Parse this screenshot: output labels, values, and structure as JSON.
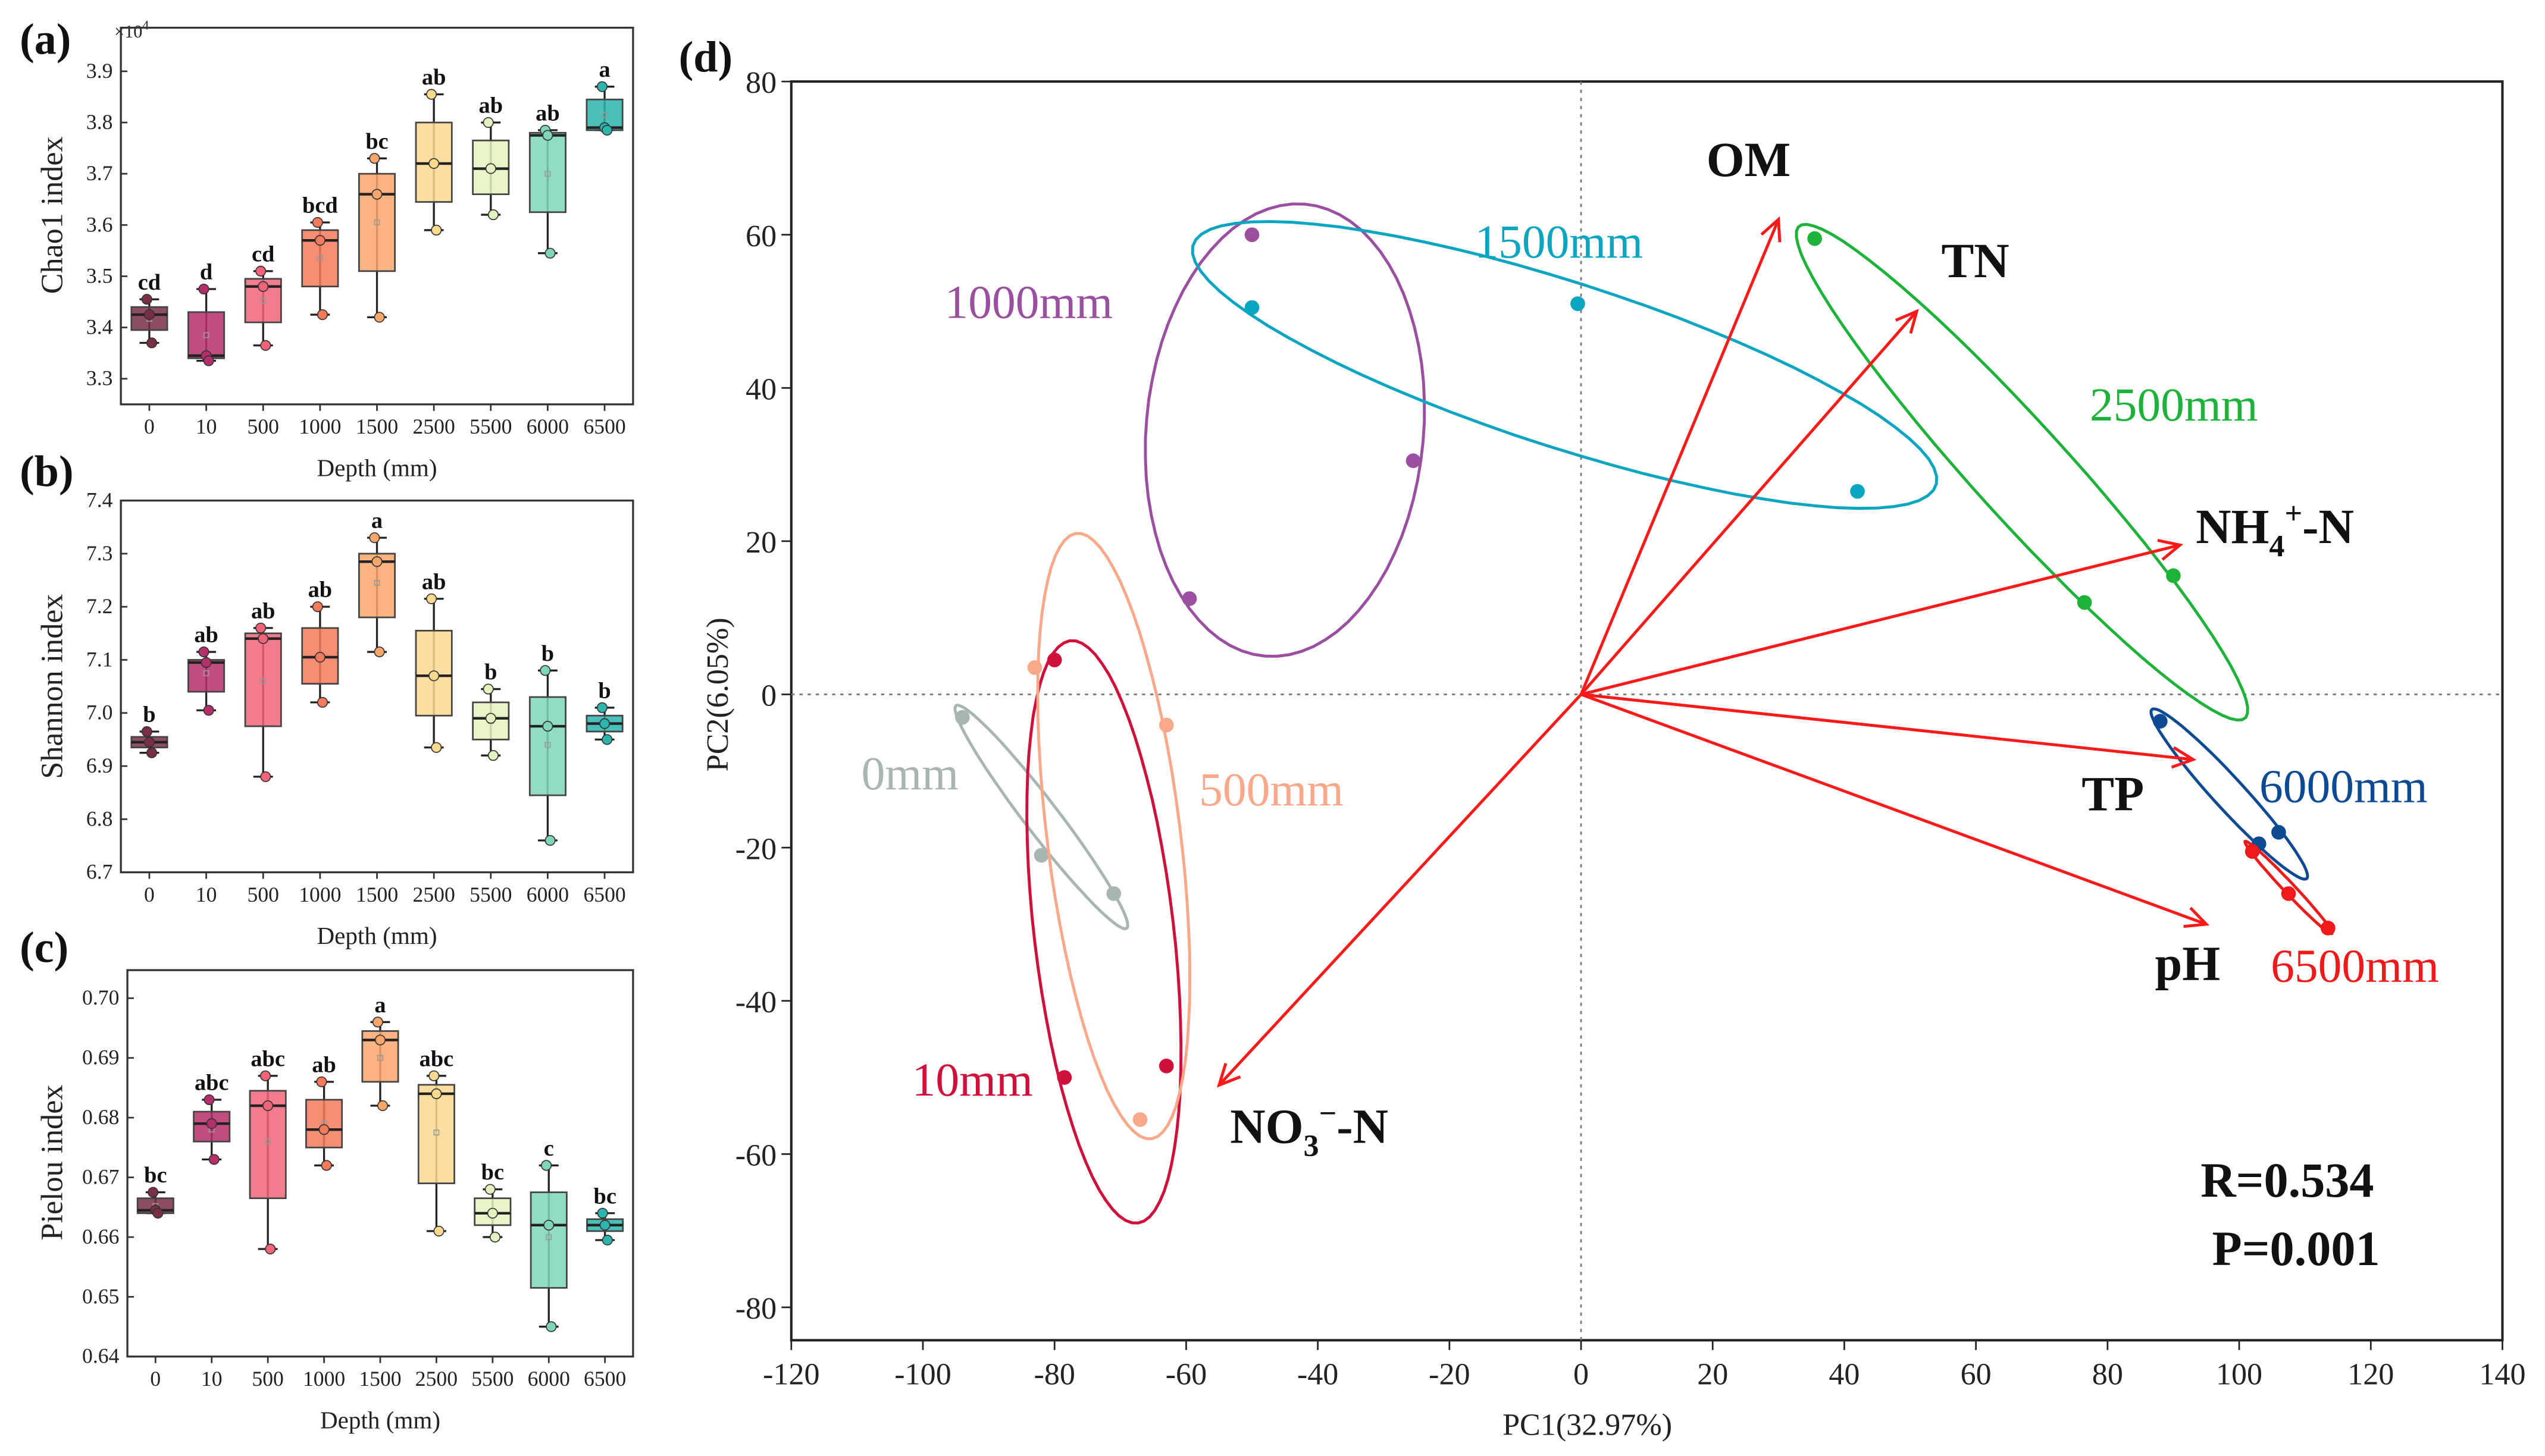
{
  "panel_labels": {
    "a": "(a)",
    "b": "(b)",
    "c": "(c)",
    "d": "(d)"
  },
  "chart_data": [
    {
      "type": "box",
      "ylabel": "Chao1 index",
      "xlabel": "Depth (mm)",
      "scale_note": "×10",
      "scale_exp": "4",
      "categories": [
        "0",
        "10",
        "500",
        "1000",
        "1500",
        "2500",
        "5500",
        "6000",
        "6500"
      ],
      "colors": [
        "#7a2f45",
        "#b5306a",
        "#f06478",
        "#f47a5a",
        "#f9a66b",
        "#fbd98f",
        "#e3f3c0",
        "#7fd6b8",
        "#2bb5ad"
      ],
      "ylim": [
        3.25,
        3.985
      ],
      "yticks": [
        "3.3",
        "3.4",
        "3.5",
        "3.6",
        "3.7",
        "3.8",
        "3.9"
      ],
      "boxes": [
        {
          "min": 3.37,
          "q1": 3.395,
          "median": 3.425,
          "q3": 3.44,
          "max": 3.455,
          "mean": 3.417,
          "letter": "cd"
        },
        {
          "min": 3.335,
          "q1": 3.34,
          "median": 3.345,
          "q3": 3.43,
          "max": 3.475,
          "mean": 3.385,
          "letter": "d"
        },
        {
          "min": 3.365,
          "q1": 3.41,
          "median": 3.48,
          "q3": 3.495,
          "max": 3.51,
          "mean": 3.452,
          "letter": "cd"
        },
        {
          "min": 3.425,
          "q1": 3.48,
          "median": 3.57,
          "q3": 3.59,
          "max": 3.605,
          "mean": 3.535,
          "letter": "bcd"
        },
        {
          "min": 3.42,
          "q1": 3.51,
          "median": 3.66,
          "q3": 3.7,
          "max": 3.73,
          "mean": 3.605,
          "letter": "bc"
        },
        {
          "min": 3.59,
          "q1": 3.645,
          "median": 3.72,
          "q3": 3.8,
          "max": 3.855,
          "mean": 3.72,
          "letter": "ab"
        },
        {
          "min": 3.62,
          "q1": 3.66,
          "median": 3.71,
          "q3": 3.765,
          "max": 3.8,
          "mean": 3.71,
          "letter": "ab"
        },
        {
          "min": 3.545,
          "q1": 3.625,
          "median": 3.775,
          "q3": 3.78,
          "max": 3.785,
          "mean": 3.7,
          "letter": "ab"
        },
        {
          "min": 3.785,
          "q1": 3.785,
          "median": 3.79,
          "q3": 3.845,
          "max": 3.87,
          "mean": 3.815,
          "letter": "a"
        }
      ]
    },
    {
      "type": "box",
      "ylabel": "Shannon index",
      "xlabel": "Depth (mm)",
      "categories": [
        "0",
        "10",
        "500",
        "1000",
        "1500",
        "2500",
        "5500",
        "6000",
        "6500"
      ],
      "colors": [
        "#7a2f45",
        "#b5306a",
        "#f06478",
        "#f47a5a",
        "#f9a66b",
        "#fbd98f",
        "#e3f3c0",
        "#7fd6b8",
        "#2bb5ad"
      ],
      "ylim": [
        6.7,
        7.4
      ],
      "yticks": [
        "6.7",
        "6.8",
        "6.9",
        "7.0",
        "7.1",
        "7.2",
        "7.3",
        "7.4"
      ],
      "boxes": [
        {
          "min": 6.925,
          "q1": 6.935,
          "median": 6.945,
          "q3": 6.955,
          "max": 6.965,
          "mean": 6.945,
          "letter": "b"
        },
        {
          "min": 7.005,
          "q1": 7.04,
          "median": 7.095,
          "q3": 7.1,
          "max": 7.115,
          "mean": 7.075,
          "letter": "ab"
        },
        {
          "min": 6.88,
          "q1": 6.975,
          "median": 7.14,
          "q3": 7.15,
          "max": 7.16,
          "mean": 7.06,
          "letter": "ab"
        },
        {
          "min": 7.02,
          "q1": 7.055,
          "median": 7.105,
          "q3": 7.16,
          "max": 7.2,
          "mean": 7.11,
          "letter": "ab"
        },
        {
          "min": 7.115,
          "q1": 7.18,
          "median": 7.285,
          "q3": 7.3,
          "max": 7.33,
          "mean": 7.245,
          "letter": "a"
        },
        {
          "min": 6.935,
          "q1": 6.995,
          "median": 7.07,
          "q3": 7.155,
          "max": 7.215,
          "mean": 7.07,
          "letter": "ab"
        },
        {
          "min": 6.92,
          "q1": 6.95,
          "median": 6.99,
          "q3": 7.02,
          "max": 7.045,
          "mean": 6.985,
          "letter": "b"
        },
        {
          "min": 6.76,
          "q1": 6.845,
          "median": 6.975,
          "q3": 7.03,
          "max": 7.08,
          "mean": 6.94,
          "letter": "b"
        },
        {
          "min": 6.95,
          "q1": 6.965,
          "median": 6.98,
          "q3": 6.995,
          "max": 7.01,
          "mean": 6.98,
          "letter": "b"
        }
      ]
    },
    {
      "type": "box",
      "ylabel": "Pielou index",
      "xlabel": "Depth (mm)",
      "categories": [
        "0",
        "10",
        "500",
        "1000",
        "1500",
        "2500",
        "5500",
        "6000",
        "6500"
      ],
      "colors": [
        "#7a2f45",
        "#b5306a",
        "#f06478",
        "#f47a5a",
        "#f9a66b",
        "#fbd98f",
        "#e3f3c0",
        "#7fd6b8",
        "#2bb5ad"
      ],
      "ylim": [
        0.64,
        0.7047
      ],
      "yticks": [
        "0.64",
        "0.65",
        "0.66",
        "0.67",
        "0.68",
        "0.69",
        "0.70"
      ],
      "boxes": [
        {
          "min": 0.664,
          "q1": 0.664,
          "median": 0.6645,
          "q3": 0.6665,
          "max": 0.6675,
          "mean": 0.6652,
          "letter": "bc"
        },
        {
          "min": 0.673,
          "q1": 0.676,
          "median": 0.679,
          "q3": 0.681,
          "max": 0.683,
          "mean": 0.678,
          "letter": "abc"
        },
        {
          "min": 0.658,
          "q1": 0.6665,
          "median": 0.682,
          "q3": 0.6845,
          "max": 0.687,
          "mean": 0.676,
          "letter": "abc"
        },
        {
          "min": 0.672,
          "q1": 0.675,
          "median": 0.678,
          "q3": 0.683,
          "max": 0.686,
          "mean": 0.679,
          "letter": "ab"
        },
        {
          "min": 0.682,
          "q1": 0.686,
          "median": 0.693,
          "q3": 0.6945,
          "max": 0.696,
          "mean": 0.69,
          "letter": "a"
        },
        {
          "min": 0.661,
          "q1": 0.669,
          "median": 0.684,
          "q3": 0.6855,
          "max": 0.687,
          "mean": 0.6775,
          "letter": "abc"
        },
        {
          "min": 0.66,
          "q1": 0.662,
          "median": 0.664,
          "q3": 0.6665,
          "max": 0.668,
          "mean": 0.664,
          "letter": "bc"
        },
        {
          "min": 0.645,
          "q1": 0.6515,
          "median": 0.662,
          "q3": 0.6675,
          "max": 0.672,
          "mean": 0.66,
          "letter": "c"
        },
        {
          "min": 0.6595,
          "q1": 0.661,
          "median": 0.662,
          "q3": 0.663,
          "max": 0.664,
          "mean": 0.662,
          "letter": "bc"
        }
      ]
    },
    {
      "type": "scatter",
      "xlabel": "PC1(32.97%)",
      "ylabel": "PC2(6.05%)",
      "xlim": [
        -120,
        140
      ],
      "ylim": [
        -84.3,
        80
      ],
      "xticks": [
        -120,
        -100,
        -80,
        -60,
        -40,
        -20,
        0,
        20,
        40,
        60,
        80,
        100,
        120,
        140
      ],
      "yticks": [
        -80,
        -60,
        -40,
        -20,
        0,
        20,
        40,
        60,
        80
      ],
      "groups": [
        {
          "name": "0mm",
          "color": "#a8b5b0",
          "points": [
            [
              -94,
              -3
            ],
            [
              -82,
              -21
            ],
            [
              -71,
              -26
            ]
          ],
          "ellipse": {
            "center": [
              -82,
              -16
            ],
            "u": [
              13,
              -14.5
            ],
            "v": [
              1.8,
              1.6
            ]
          }
        },
        {
          "name": "10mm",
          "color": "#d0103a",
          "points": [
            [
              -80,
              4.5
            ],
            [
              -78.5,
              -50
            ],
            [
              -63,
              -48.5
            ]
          ],
          "ellipse": {
            "center": [
              -72.5,
              -31
            ],
            "u": [
              5.2,
              -38
            ],
            "v": [
              10.5,
              1.4
            ]
          }
        },
        {
          "name": "500mm",
          "color": "#f9a88a",
          "points": [
            [
              -83,
              3.5
            ],
            [
              -63,
              -4
            ],
            [
              -67,
              -55.5
            ]
          ],
          "ellipse": {
            "center": [
              -71,
              -18.5
            ],
            "u": [
              5.8,
              -39.5
            ],
            "v": [
              10,
              1.5
            ]
          }
        },
        {
          "name": "1000mm",
          "color": "#9b4fa0",
          "points": [
            [
              -50,
              60
            ],
            [
              -25.5,
              30.5
            ],
            [
              -59.5,
              12.5
            ]
          ],
          "ellipse": {
            "center": [
              -45,
              34.5
            ],
            "u": [
              3,
              29.5
            ],
            "v": [
              21,
              -1.5
            ]
          }
        },
        {
          "name": "1500mm",
          "color": "#0aa5c0",
          "points": [
            [
              -50,
              50.5
            ],
            [
              -0.5,
              51
            ],
            [
              42,
              26.5
            ]
          ],
          "ellipse": {
            "center": [
              -2.5,
              43
            ],
            "u": [
              56.5,
              -15.5
            ],
            "v": [
              2.8,
              10.5
            ]
          }
        },
        {
          "name": "2500mm",
          "color": "#1db33a",
          "points": [
            [
              35.5,
              59.5
            ],
            [
              76.5,
              12
            ],
            [
              90,
              15.5
            ]
          ],
          "ellipse": {
            "center": [
              67,
              29
            ],
            "u": [
              34,
              -32
            ],
            "v": [
              4.6,
              4.8
            ]
          }
        },
        {
          "name": "6000mm",
          "color": "#0d4a94",
          "points": [
            [
              88,
              -3.5
            ],
            [
              103,
              -19.5
            ],
            [
              106,
              -18
            ]
          ],
          "ellipse": {
            "center": [
              98.5,
              -13
            ],
            "u": [
              11.8,
              -11
            ],
            "v": [
              1.5,
              1.6
            ]
          }
        },
        {
          "name": "6500mm",
          "color": "#f01a1a",
          "points": [
            [
              102,
              -20.5
            ],
            [
              107.5,
              -26
            ],
            [
              113.5,
              -30.5
            ]
          ],
          "ellipse": {
            "center": [
              107.5,
              -25.2
            ],
            "u": [
              6.6,
              -6
            ],
            "v": [
              0.5,
              0.55
            ]
          }
        }
      ],
      "loadings": [
        {
          "name": "OM",
          "xy": [
            30,
            62
          ]
        },
        {
          "name": "TN",
          "xy": [
            51,
            50
          ]
        },
        {
          "name": "NH4+-N",
          "xy": [
            91,
            19.5
          ]
        },
        {
          "name": "TP",
          "xy": [
            93,
            -8.5
          ]
        },
        {
          "name": "pH",
          "xy": [
            95,
            -30
          ]
        },
        {
          "name": "NO3−-N",
          "xy": [
            -55,
            -51
          ]
        }
      ],
      "loading_color": "#ff1a1a",
      "variable_labels": {
        "om": "OM",
        "tn": "TN",
        "nh4_main": "NH",
        "nh4_sub": "4",
        "nh4_sup": "+",
        "nh4_tail": "-N",
        "tp": "TP",
        "ph": "pH",
        "no3_main": "NO",
        "no3_sub": "3",
        "no3_sup": "−",
        "no3_tail": "-N"
      },
      "stats": {
        "r": "R=0.534",
        "p": "P=0.001"
      }
    }
  ]
}
